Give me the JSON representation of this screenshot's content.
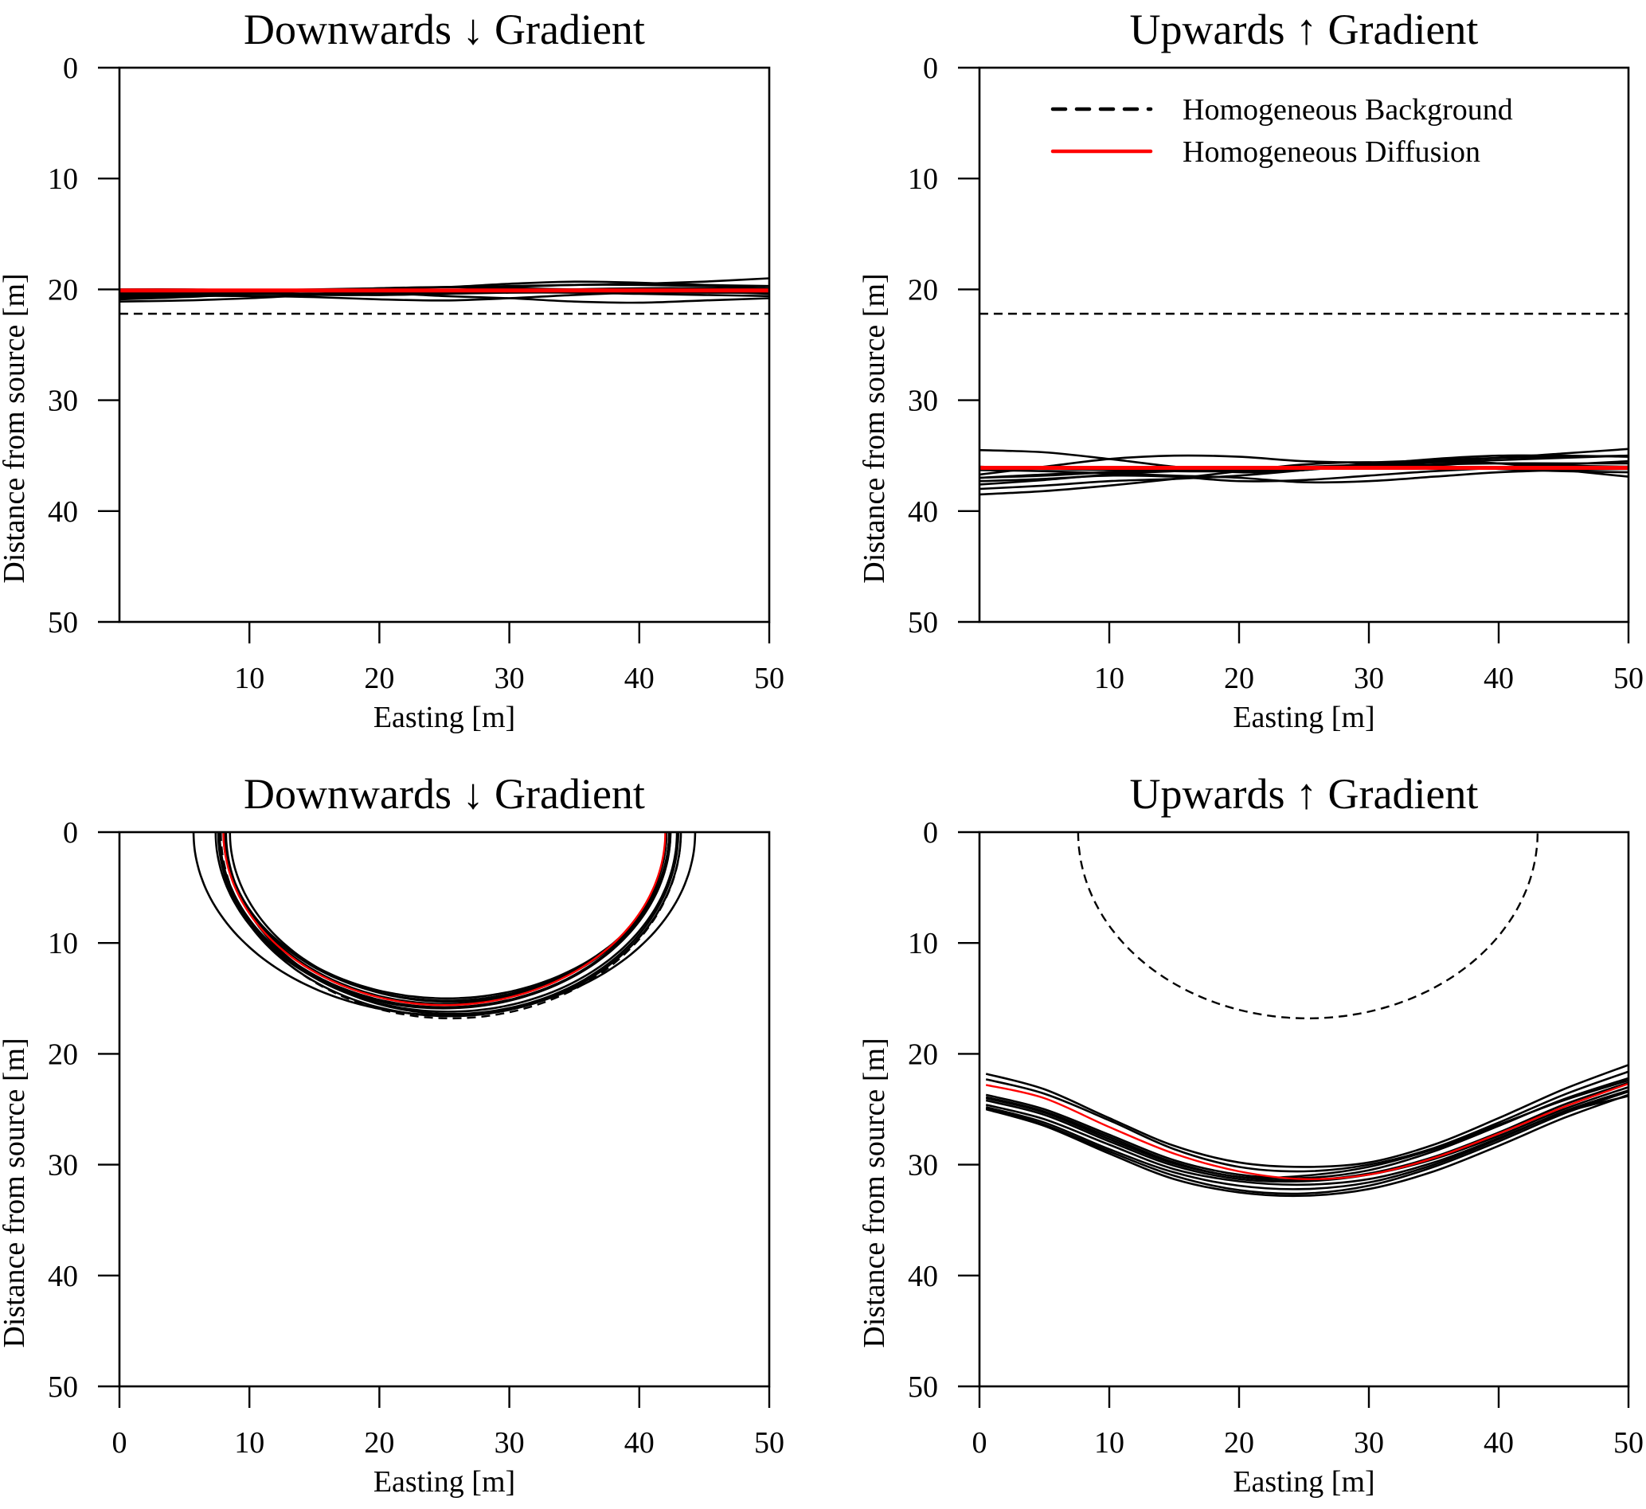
{
  "colors": {
    "realization": "#000000",
    "homogeneous_background": "#000000",
    "homogeneous_diffusion": "#ff0000",
    "axes": "#000000"
  },
  "legend": {
    "placement": "top-right panel, upper area",
    "entries": [
      {
        "label": "Homogeneous Background",
        "style": "dashed",
        "color": "#000000"
      },
      {
        "label": "Homogeneous Diffusion",
        "style": "solid",
        "color": "#ff0000"
      }
    ]
  },
  "chart_data": [
    {
      "type": "line",
      "panel": "top-left",
      "title": "Downwards ↓ Gradient",
      "xlabel": "Easting [m]",
      "ylabel": "Distance from source [m]",
      "xlim": [
        0,
        50
      ],
      "ylim": [
        0,
        50
      ],
      "y_inverted": true,
      "xticks": [
        10,
        20,
        30,
        40,
        50
      ],
      "yticks": [
        0,
        10,
        20,
        30,
        40,
        50
      ],
      "grid": false,
      "homogeneous_background": {
        "x": [
          0,
          50
        ],
        "y": [
          22.2,
          22.2
        ]
      },
      "homogeneous_diffusion": {
        "x": [
          0,
          50
        ],
        "y": [
          20.1,
          20.1
        ]
      },
      "realizations_x": [
        0,
        5,
        10,
        15,
        20,
        25,
        30,
        35,
        40,
        45,
        50
      ],
      "realizations": [
        [
          20.0,
          20.0,
          20.1,
          20.2,
          20.2,
          20.3,
          20.2,
          20.1,
          20.0,
          20.0,
          20.0
        ],
        [
          20.4,
          20.4,
          20.3,
          20.1,
          19.9,
          19.8,
          19.7,
          19.6,
          19.5,
          19.3,
          19.0
        ],
        [
          20.9,
          20.7,
          20.4,
          20.1,
          19.9,
          19.8,
          19.9,
          20.0,
          20.1,
          20.1,
          20.1
        ],
        [
          21.1,
          21.0,
          20.8,
          20.5,
          20.3,
          20.3,
          20.2,
          20.1,
          20.1,
          20.2,
          20.4
        ],
        [
          20.5,
          20.5,
          20.4,
          20.4,
          20.3,
          20.1,
          19.8,
          19.6,
          19.6,
          19.7,
          19.9
        ],
        [
          20.7,
          20.6,
          20.6,
          20.7,
          20.9,
          21.0,
          20.8,
          20.5,
          20.3,
          20.3,
          20.3
        ],
        [
          20.6,
          20.5,
          20.2,
          20.1,
          20.3,
          20.6,
          20.8,
          21.1,
          21.2,
          21.0,
          20.8
        ],
        [
          20.3,
          20.2,
          20.1,
          20.0,
          19.9,
          19.8,
          19.5,
          19.3,
          19.4,
          19.6,
          19.7
        ],
        [
          20.8,
          20.6,
          20.4,
          20.4,
          20.5,
          20.4,
          20.2,
          20.0,
          19.9,
          19.9,
          20.0
        ],
        [
          20.2,
          20.3,
          20.4,
          20.5,
          20.5,
          20.4,
          20.3,
          20.3,
          20.4,
          20.5,
          20.6
        ]
      ]
    },
    {
      "type": "line",
      "panel": "top-right",
      "title": "Upwards ↑ Gradient",
      "xlabel": "Easting [m]",
      "ylabel": "Distance from source [m]",
      "xlim": [
        0,
        50
      ],
      "ylim": [
        0,
        50
      ],
      "y_inverted": true,
      "xticks": [
        10,
        20,
        30,
        40,
        50
      ],
      "yticks": [
        0,
        10,
        20,
        30,
        40,
        50
      ],
      "grid": false,
      "homogeneous_background": {
        "x": [
          0,
          50
        ],
        "y": [
          22.2,
          22.2
        ]
      },
      "homogeneous_diffusion": {
        "x": [
          0,
          50
        ],
        "y": [
          36.1,
          36.1
        ]
      },
      "realizations_x": [
        0,
        5,
        10,
        15,
        20,
        25,
        30,
        35,
        40,
        45,
        50
      ],
      "realizations": [
        [
          34.5,
          34.7,
          35.3,
          36.0,
          36.5,
          36.3,
          35.8,
          35.6,
          35.7,
          35.9,
          36.0
        ],
        [
          36.7,
          36.0,
          35.3,
          35.0,
          35.1,
          35.5,
          35.6,
          35.4,
          35.2,
          35.1,
          35.0
        ],
        [
          37.0,
          36.8,
          36.5,
          36.3,
          36.2,
          36.0,
          35.8,
          35.5,
          35.2,
          34.8,
          34.4
        ],
        [
          37.6,
          37.2,
          36.7,
          36.4,
          36.3,
          36.1,
          35.9,
          35.6,
          35.4,
          35.2,
          35.0
        ],
        [
          38.5,
          38.2,
          37.7,
          37.1,
          36.4,
          35.8,
          35.6,
          35.9,
          36.2,
          36.4,
          36.5
        ],
        [
          37.3,
          37.1,
          36.8,
          36.9,
          37.3,
          37.2,
          36.8,
          36.4,
          36.1,
          35.8,
          35.5
        ],
        [
          36.3,
          36.4,
          36.6,
          36.8,
          37.0,
          37.4,
          37.3,
          36.9,
          36.5,
          36.3,
          36.2
        ],
        [
          38.0,
          37.7,
          37.3,
          37.1,
          36.8,
          36.3,
          35.7,
          35.5,
          35.7,
          36.3,
          36.9
        ],
        [
          36.0,
          36.2,
          36.3,
          36.4,
          36.4,
          36.2,
          35.8,
          35.3,
          35.0,
          35.0,
          35.1
        ],
        [
          37.0,
          36.7,
          36.5,
          36.4,
          36.3,
          36.1,
          36.0,
          35.8,
          35.7,
          35.7,
          35.7
        ]
      ]
    },
    {
      "type": "line",
      "panel": "bottom-left",
      "title": "Downwards ↓ Gradient",
      "xlabel": "Easting [m]",
      "ylabel": "Distance from source [m]",
      "xlim": [
        0,
        50
      ],
      "ylim": [
        0,
        50
      ],
      "y_inverted": true,
      "xticks": [
        0,
        10,
        20,
        30,
        40,
        50
      ],
      "yticks": [
        0,
        10,
        20,
        30,
        40,
        50
      ],
      "grid": false,
      "homogeneous_background": {
        "shape": "semicircle",
        "center_x": 25.5,
        "half_width": 17.7,
        "depth": 16.8
      },
      "homogeneous_diffusion": {
        "shape": "semicircle",
        "center_x": 25.0,
        "half_width": 17.0,
        "depth": 15.6
      },
      "realizations": [
        {
          "center_x": 25.0,
          "half_width": 19.3,
          "depth": 16.5
        },
        {
          "center_x": 25.2,
          "half_width": 17.2,
          "depth": 15.0
        },
        {
          "center_x": 25.4,
          "half_width": 16.9,
          "depth": 15.3
        },
        {
          "center_x": 25.0,
          "half_width": 17.3,
          "depth": 15.8
        },
        {
          "center_x": 25.3,
          "half_width": 17.6,
          "depth": 16.2
        },
        {
          "center_x": 25.1,
          "half_width": 17.0,
          "depth": 15.5
        },
        {
          "center_x": 25.6,
          "half_width": 17.4,
          "depth": 16.4
        },
        {
          "center_x": 25.2,
          "half_width": 17.1,
          "depth": 15.2
        },
        {
          "center_x": 24.9,
          "half_width": 17.5,
          "depth": 15.9
        },
        {
          "center_x": 25.4,
          "half_width": 17.8,
          "depth": 16.6
        }
      ]
    },
    {
      "type": "line",
      "panel": "bottom-right",
      "title": "Upwards ↑ Gradient",
      "xlabel": "Easting [m]",
      "ylabel": "Distance from source [m]",
      "xlim": [
        0,
        50
      ],
      "ylim": [
        0,
        50
      ],
      "y_inverted": true,
      "xticks": [
        0,
        10,
        20,
        30,
        40,
        50
      ],
      "yticks": [
        0,
        10,
        20,
        30,
        40,
        50
      ],
      "grid": false,
      "homogeneous_background": {
        "shape": "semicircle",
        "center_x": 25.3,
        "half_width": 17.7,
        "depth": 16.8
      },
      "homogeneous_diffusion": {
        "x": [
          0.5,
          5,
          10,
          15,
          20,
          25,
          30,
          35,
          40,
          45,
          50
        ],
        "y": [
          22.8,
          24.0,
          26.6,
          29.0,
          30.6,
          31.3,
          30.9,
          29.4,
          27.2,
          24.8,
          22.7
        ]
      },
      "realizations_x": [
        0.5,
        5,
        10,
        15,
        20,
        25,
        30,
        35,
        40,
        45,
        50
      ],
      "realizations": [
        [
          21.8,
          23.2,
          25.8,
          28.3,
          29.8,
          30.2,
          29.8,
          28.2,
          25.8,
          23.2,
          21.0
        ],
        [
          22.3,
          23.6,
          26.0,
          28.6,
          30.2,
          30.6,
          30.0,
          28.5,
          26.2,
          23.7,
          21.6
        ],
        [
          23.7,
          25.0,
          27.3,
          29.6,
          30.9,
          31.2,
          30.5,
          28.8,
          26.5,
          24.1,
          22.2
        ],
        [
          24.0,
          25.3,
          27.7,
          29.9,
          31.1,
          31.4,
          30.8,
          29.3,
          27.1,
          24.6,
          22.6
        ],
        [
          24.2,
          25.5,
          27.9,
          30.1,
          31.3,
          31.5,
          30.9,
          29.5,
          27.4,
          25.0,
          23.0
        ],
        [
          24.8,
          26.2,
          28.6,
          30.7,
          31.9,
          32.2,
          31.6,
          30.0,
          27.7,
          25.2,
          23.3
        ],
        [
          25.0,
          26.5,
          29.0,
          31.3,
          32.5,
          32.8,
          32.2,
          30.6,
          28.3,
          25.8,
          23.7
        ],
        [
          24.9,
          26.4,
          28.8,
          31.0,
          32.3,
          32.6,
          31.9,
          30.2,
          27.9,
          25.4,
          23.4
        ],
        [
          23.9,
          25.2,
          27.5,
          29.8,
          31.1,
          31.0,
          30.2,
          28.6,
          26.4,
          24.2,
          22.4
        ],
        [
          24.6,
          25.9,
          28.2,
          30.4,
          31.5,
          31.8,
          31.3,
          29.8,
          27.6,
          25.3,
          23.8
        ]
      ]
    }
  ]
}
